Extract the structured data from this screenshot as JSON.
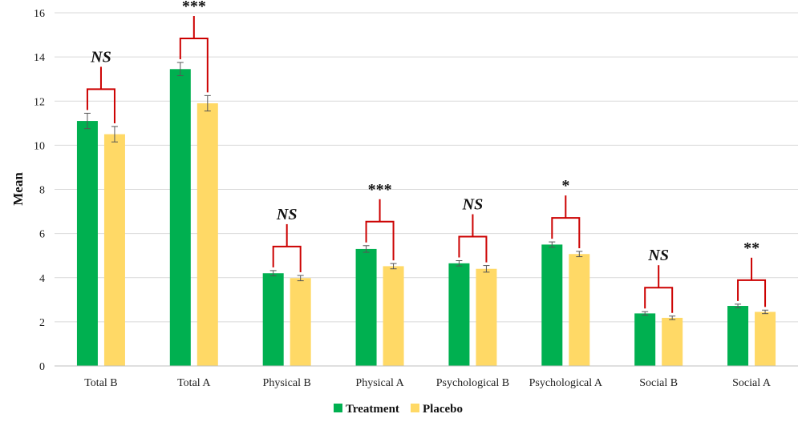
{
  "chart_data": {
    "type": "bar",
    "title": "",
    "xlabel": "",
    "ylabel": "Mean",
    "ylim": [
      0,
      16
    ],
    "yticks": [
      0,
      2,
      4,
      6,
      8,
      10,
      12,
      14,
      16
    ],
    "grid": true,
    "legend_position": "bottom",
    "categories": [
      "Total B",
      "Total A",
      "Physical B",
      "Physical A",
      "Psychological B",
      "Psychological A",
      "Social B",
      "Social A"
    ],
    "series": [
      {
        "name": "Treatment",
        "color": "#00b050",
        "values": [
          11.1,
          13.45,
          4.2,
          5.3,
          4.65,
          5.5,
          2.38,
          2.72
        ],
        "errors": [
          0.35,
          0.3,
          0.12,
          0.15,
          0.12,
          0.12,
          0.08,
          0.08
        ]
      },
      {
        "name": "Placebo",
        "color": "#ffd966",
        "values": [
          10.5,
          11.9,
          3.98,
          4.52,
          4.4,
          5.07,
          2.18,
          2.45
        ],
        "errors": [
          0.35,
          0.35,
          0.12,
          0.12,
          0.15,
          0.12,
          0.08,
          0.08
        ]
      }
    ],
    "significance": [
      "NS",
      "***",
      "NS",
      "***",
      "NS",
      "*",
      "NS",
      "**"
    ],
    "bracket_color": "#cc0000"
  }
}
